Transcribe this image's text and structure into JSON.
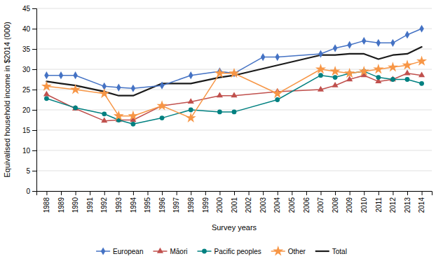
{
  "chart_data": {
    "type": "line",
    "xlabel": "Survey years",
    "ylabel": "Equivalised household income in $2014 (000)",
    "xlim": [
      1987.3,
      2014.7
    ],
    "xticks": [
      1988,
      1989,
      1990,
      1991,
      1992,
      1993,
      1994,
      1995,
      1996,
      1997,
      1998,
      1999,
      2000,
      2001,
      2002,
      2003,
      2004,
      2005,
      2006,
      2007,
      2008,
      2009,
      2010,
      2011,
      2012,
      2013,
      2014
    ],
    "ylim": [
      0,
      45
    ],
    "yticks": [
      0,
      5,
      10,
      15,
      20,
      25,
      30,
      35,
      40,
      45
    ],
    "grid": true,
    "legend": "bottom",
    "series": [
      {
        "name": "European",
        "color": "#4472C4",
        "marker": "diamond",
        "x": [
          1988,
          1989,
          1990,
          1992,
          1993,
          1994,
          1996,
          1998,
          2000,
          2001,
          2003,
          2004,
          2007,
          2008,
          2009,
          2010,
          2011,
          2012,
          2013,
          2014
        ],
        "values": [
          28.5,
          28.5,
          28.5,
          25.8,
          25.5,
          25.3,
          26.0,
          28.5,
          29.5,
          29.0,
          33.0,
          33.0,
          33.8,
          35.2,
          36.0,
          37.0,
          36.5,
          36.5,
          38.5,
          40.0
        ]
      },
      {
        "name": "Māori",
        "color": "#C0504D",
        "marker": "triangle",
        "x": [
          1988,
          1990,
          1992,
          1993,
          1994,
          1996,
          1998,
          2000,
          2001,
          2004,
          2007,
          2008,
          2009,
          2010,
          2011,
          2012,
          2013,
          2014
        ],
        "values": [
          23.8,
          20.3,
          17.3,
          17.5,
          17.5,
          21.0,
          22.0,
          23.5,
          23.5,
          24.5,
          25.0,
          26.0,
          27.5,
          28.5,
          27.0,
          27.5,
          29.0,
          28.5
        ]
      },
      {
        "name": "Pacific peoples",
        "color": "#008080",
        "marker": "circle",
        "x": [
          1988,
          1990,
          1992,
          1993,
          1994,
          1996,
          1998,
          2000,
          2001,
          2004,
          2007,
          2008,
          2009,
          2010,
          2011,
          2012,
          2013,
          2014
        ],
        "values": [
          22.8,
          20.5,
          19.0,
          17.5,
          16.5,
          18.0,
          20.0,
          19.5,
          19.5,
          22.5,
          28.5,
          28.0,
          29.0,
          29.5,
          28.0,
          27.5,
          27.5,
          26.5
        ]
      },
      {
        "name": "Other",
        "color": "#F79646",
        "marker": "star",
        "x": [
          1988,
          1990,
          1992,
          1993,
          1994,
          1996,
          1998,
          2000,
          2001,
          2004,
          2007,
          2008,
          2009,
          2010,
          2011,
          2012,
          2013,
          2014
        ],
        "values": [
          25.8,
          25.0,
          24.0,
          18.5,
          18.5,
          21.0,
          18.0,
          29.0,
          29.0,
          24.0,
          30.0,
          29.5,
          29.0,
          29.5,
          30.0,
          30.5,
          31.0,
          32.0
        ]
      },
      {
        "name": "Total",
        "color": "#1A1A1A",
        "marker": "none",
        "x": [
          1988,
          1989,
          1990,
          1992,
          1993,
          1994,
          1996,
          1998,
          2000,
          2001,
          2007,
          2008,
          2009,
          2010,
          2011,
          2012,
          2013,
          2014
        ],
        "values": [
          27.0,
          26.5,
          26.0,
          24.5,
          23.5,
          23.5,
          26.5,
          26.5,
          28.0,
          28.5,
          33.5,
          33.5,
          33.8,
          33.8,
          32.5,
          33.5,
          33.8,
          35.5
        ]
      }
    ]
  }
}
